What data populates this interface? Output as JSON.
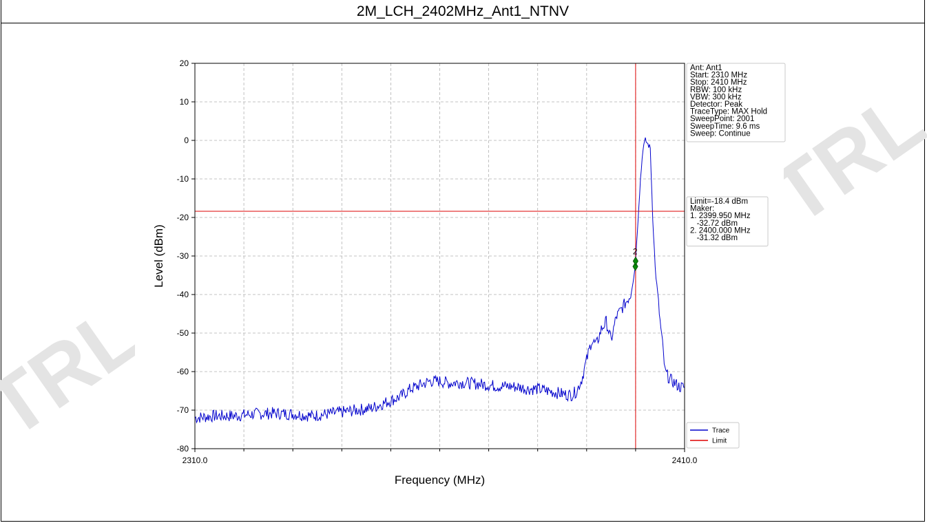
{
  "header": {
    "title": "2M_LCH_2402MHz_Ant1_NTNV"
  },
  "watermark": {
    "text": "TRL",
    "color": "#e4e4e4"
  },
  "chart_data": {
    "type": "line",
    "title": "",
    "xlabel": "Frequency (MHz)",
    "ylabel": "Level (dBm)",
    "xlim": [
      2310.0,
      2410.0
    ],
    "ylim": [
      -80,
      20
    ],
    "x_tick_labels": [
      "2310.0",
      "2410.0"
    ],
    "x_minor_ticks": [
      2320,
      2330,
      2340,
      2350,
      2360,
      2370,
      2380,
      2390,
      2400
    ],
    "y_ticks": [
      20,
      10,
      0,
      -10,
      -20,
      -30,
      -40,
      -50,
      -60,
      -70,
      -80
    ],
    "grid": true,
    "legend_placement": "lower right outside",
    "series": [
      {
        "name": "Trace",
        "color": "#0000cc",
        "x": [
          2310,
          2314,
          2318,
          2322,
          2326,
          2330,
          2334,
          2337,
          2340,
          2343,
          2346,
          2349,
          2352,
          2354,
          2356,
          2358,
          2360,
          2362,
          2364,
          2366,
          2368,
          2370,
          2372,
          2374,
          2376,
          2378,
          2380,
          2382,
          2384,
          2386,
          2387,
          2388,
          2389,
          2390,
          2391,
          2392,
          2393,
          2394,
          2395,
          2396,
          2397,
          2398,
          2399,
          2399.95,
          2400,
          2400.5,
          2401,
          2401.5,
          2402,
          2402.5,
          2403,
          2403.5,
          2404,
          2404.5,
          2405,
          2405.5,
          2406,
          2407,
          2408,
          2409,
          2410
        ],
        "y": [
          -72,
          -71.5,
          -71.5,
          -71,
          -70.8,
          -71,
          -71.5,
          -71,
          -70.5,
          -70,
          -69.5,
          -68,
          -66.5,
          -64.5,
          -63.5,
          -62.5,
          -62.5,
          -63,
          -62.8,
          -63,
          -63.2,
          -63.5,
          -63.8,
          -63.8,
          -64,
          -64.5,
          -64.5,
          -65,
          -65.5,
          -66,
          -66,
          -65,
          -62,
          -57,
          -52,
          -53,
          -49,
          -47,
          -52,
          -46,
          -44,
          -42,
          -40,
          -32.72,
          -31.32,
          -20,
          -10,
          -2,
          0,
          -1,
          -2,
          -20,
          -33,
          -40,
          -47,
          -53,
          -60,
          -62,
          -63,
          -64,
          -64
        ]
      },
      {
        "name": "Limit",
        "color": "#dd0000",
        "y": -18.4
      }
    ],
    "marker_line_x": 2400.0,
    "markers": [
      {
        "label": "1",
        "x": 2399.95,
        "y": -32.72,
        "color": "#0a8a0a"
      },
      {
        "label": "2",
        "x": 2400.0,
        "y": -31.32,
        "color": "#0a8a0a"
      }
    ],
    "marker_visible_label": "2",
    "info_box": [
      "Ant: Ant1",
      "Start: 2310 MHz",
      "Stop: 2410 MHz",
      "RBW: 100 kHz",
      "VBW: 300 kHz",
      "Detector: Peak",
      "TraceType: MAX Hold",
      "SweepPoint: 2001",
      "SweepTime: 9.6 ms",
      "Sweep: Continue"
    ],
    "limit_box": [
      "Limit=-18.4 dBm",
      "Maker:",
      "1. 2399.950 MHz",
      "   -32.72 dBm",
      "2. 2400.000 MHz",
      "   -31.32 dBm"
    ]
  }
}
